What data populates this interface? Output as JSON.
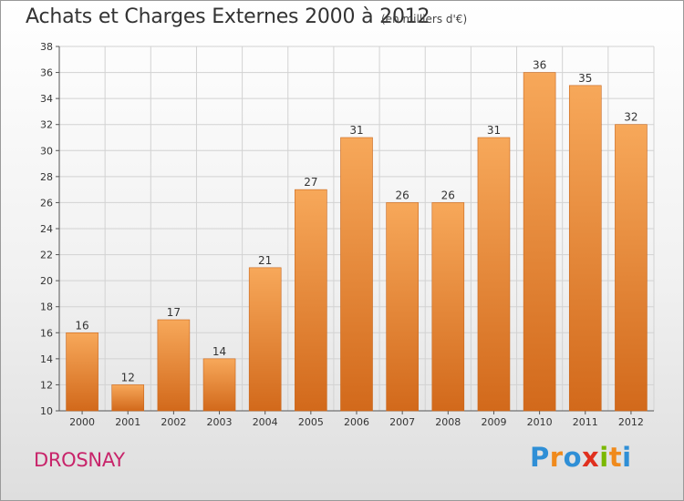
{
  "header": {
    "title": "Achats et Charges Externes 2000 à 2012",
    "subtitle": "(en milliers d'€)"
  },
  "footer": {
    "place": "DROSNAY",
    "logo": {
      "text": "Proxiti",
      "letters": [
        {
          "ch": "P",
          "color": "#2f8fd6"
        },
        {
          "ch": "r",
          "color": "#f08a1c"
        },
        {
          "ch": "o",
          "color": "#2f8fd6"
        },
        {
          "ch": "x",
          "color": "#e0301e"
        },
        {
          "ch": "i",
          "color": "#7ab800"
        },
        {
          "ch": "t",
          "color": "#f08a1c"
        },
        {
          "ch": "i",
          "color": "#2f8fd6"
        }
      ]
    }
  },
  "colors": {
    "bar_top": "#f7a85a",
    "bar_bottom": "#d2691b",
    "bar_stroke": "#c8661c",
    "grid": "#d2d2d2",
    "axis": "#555555"
  },
  "chart_data": {
    "type": "bar",
    "categories": [
      "2000",
      "2001",
      "2002",
      "2003",
      "2004",
      "2005",
      "2006",
      "2007",
      "2008",
      "2009",
      "2010",
      "2011",
      "2012"
    ],
    "values": [
      16,
      12,
      17,
      14,
      21,
      27,
      31,
      26,
      26,
      31,
      36,
      35,
      32
    ],
    "ylim": [
      10,
      38
    ],
    "yticks": [
      10,
      12,
      14,
      16,
      18,
      20,
      22,
      24,
      26,
      28,
      30,
      32,
      34,
      36,
      38
    ],
    "grid": true,
    "data_labels": true
  }
}
